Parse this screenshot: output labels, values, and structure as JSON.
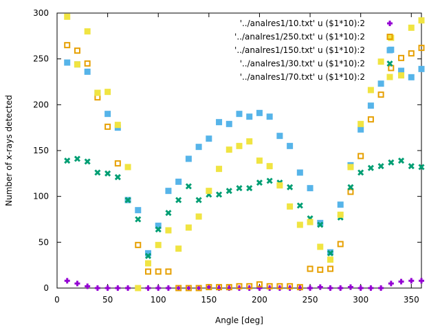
{
  "chart_data": {
    "type": "scatter",
    "title": "",
    "xlabel": "Angle [deg]",
    "ylabel": "Number of x-rays detected",
    "xlim": [
      0,
      360
    ],
    "ylim": [
      0,
      300
    ],
    "xticks": [
      0,
      50,
      100,
      150,
      200,
      250,
      300,
      350
    ],
    "yticks": [
      0,
      50,
      100,
      150,
      200,
      250,
      300
    ],
    "grid": false,
    "legend_position": "top-right",
    "series": [
      {
        "name": "'../analres1/10.txt' u ($1*10):2",
        "color": "#9400d3",
        "marker": "plus",
        "x": [
          10,
          20,
          30,
          40,
          50,
          60,
          70,
          80,
          90,
          100,
          110,
          120,
          130,
          140,
          150,
          160,
          170,
          180,
          190,
          200,
          210,
          220,
          230,
          240,
          250,
          260,
          270,
          280,
          290,
          300,
          310,
          320,
          330,
          340,
          350,
          360
        ],
        "y": [
          8,
          5,
          2,
          0,
          0,
          0,
          0,
          0,
          0,
          0,
          0,
          0,
          0,
          0,
          1,
          0,
          0,
          0,
          0,
          0,
          0,
          0,
          0,
          0,
          0,
          1,
          0,
          0,
          1,
          0,
          0,
          0,
          5,
          7,
          8,
          8
        ]
      },
      {
        "name": "'../analres1/250.txt' u ($1*10):2",
        "color": "#e69f00",
        "marker": "open-square",
        "x": [
          10,
          20,
          30,
          40,
          50,
          60,
          70,
          80,
          90,
          100,
          110,
          120,
          130,
          140,
          150,
          160,
          170,
          180,
          190,
          200,
          210,
          220,
          230,
          240,
          250,
          260,
          270,
          280,
          290,
          300,
          310,
          320,
          330,
          340,
          350,
          360
        ],
        "y": [
          265,
          259,
          245,
          208,
          176,
          136,
          96,
          47,
          18,
          18,
          18,
          0,
          0,
          0,
          1,
          1,
          1,
          2,
          2,
          4,
          2,
          2,
          2,
          1,
          21,
          20,
          21,
          48,
          105,
          144,
          184,
          211,
          240,
          251,
          256,
          262
        ]
      },
      {
        "name": "'../analres1/150.txt'  u ($1*10):2",
        "color": "#56b4e9",
        "marker": "filled-square",
        "x": [
          10,
          20,
          30,
          40,
          50,
          60,
          70,
          80,
          90,
          100,
          110,
          120,
          130,
          140,
          150,
          160,
          170,
          180,
          190,
          200,
          210,
          220,
          230,
          240,
          250,
          260,
          270,
          280,
          290,
          300,
          310,
          320,
          330,
          340,
          350,
          360
        ],
        "y": [
          246,
          244,
          236,
          213,
          190,
          175,
          96,
          85,
          38,
          68,
          106,
          116,
          141,
          154,
          163,
          181,
          179,
          190,
          187,
          191,
          187,
          166,
          155,
          126,
          109,
          71,
          39,
          91,
          134,
          173,
          199,
          223,
          260,
          237,
          230,
          239
        ]
      },
      {
        "name": "'../analres1/30.txt' u ($1*10):2",
        "color": "#009e73",
        "marker": "x",
        "x": [
          10,
          20,
          30,
          40,
          50,
          60,
          70,
          80,
          90,
          100,
          110,
          120,
          130,
          140,
          150,
          160,
          170,
          180,
          190,
          200,
          210,
          220,
          230,
          240,
          250,
          260,
          270,
          280,
          290,
          300,
          310,
          320,
          330,
          340,
          350,
          360
        ],
        "y": [
          139,
          141,
          138,
          126,
          125,
          121,
          96,
          75,
          35,
          64,
          82,
          96,
          111,
          96,
          102,
          102,
          106,
          109,
          109,
          115,
          117,
          115,
          110,
          90,
          76,
          69,
          38,
          77,
          110,
          126,
          131,
          133,
          137,
          139,
          133,
          132
        ]
      },
      {
        "name": "'../analres1/70.txt' u ($1*10):2",
        "color": "#f0e442",
        "marker": "filled-square",
        "x": [
          10,
          20,
          30,
          40,
          50,
          60,
          70,
          80,
          90,
          100,
          110,
          120,
          130,
          140,
          150,
          160,
          170,
          180,
          190,
          200,
          210,
          220,
          230,
          240,
          250,
          260,
          270,
          280,
          290,
          300,
          310,
          320,
          330,
          340,
          350,
          360
        ],
        "y": [
          296,
          244,
          280,
          213,
          214,
          178,
          132,
          0,
          27,
          47,
          63,
          43,
          66,
          78,
          106,
          130,
          151,
          155,
          160,
          139,
          133,
          112,
          89,
          69,
          72,
          45,
          31,
          80,
          132,
          179,
          216,
          247,
          273,
          232,
          284,
          292
        ]
      }
    ]
  }
}
